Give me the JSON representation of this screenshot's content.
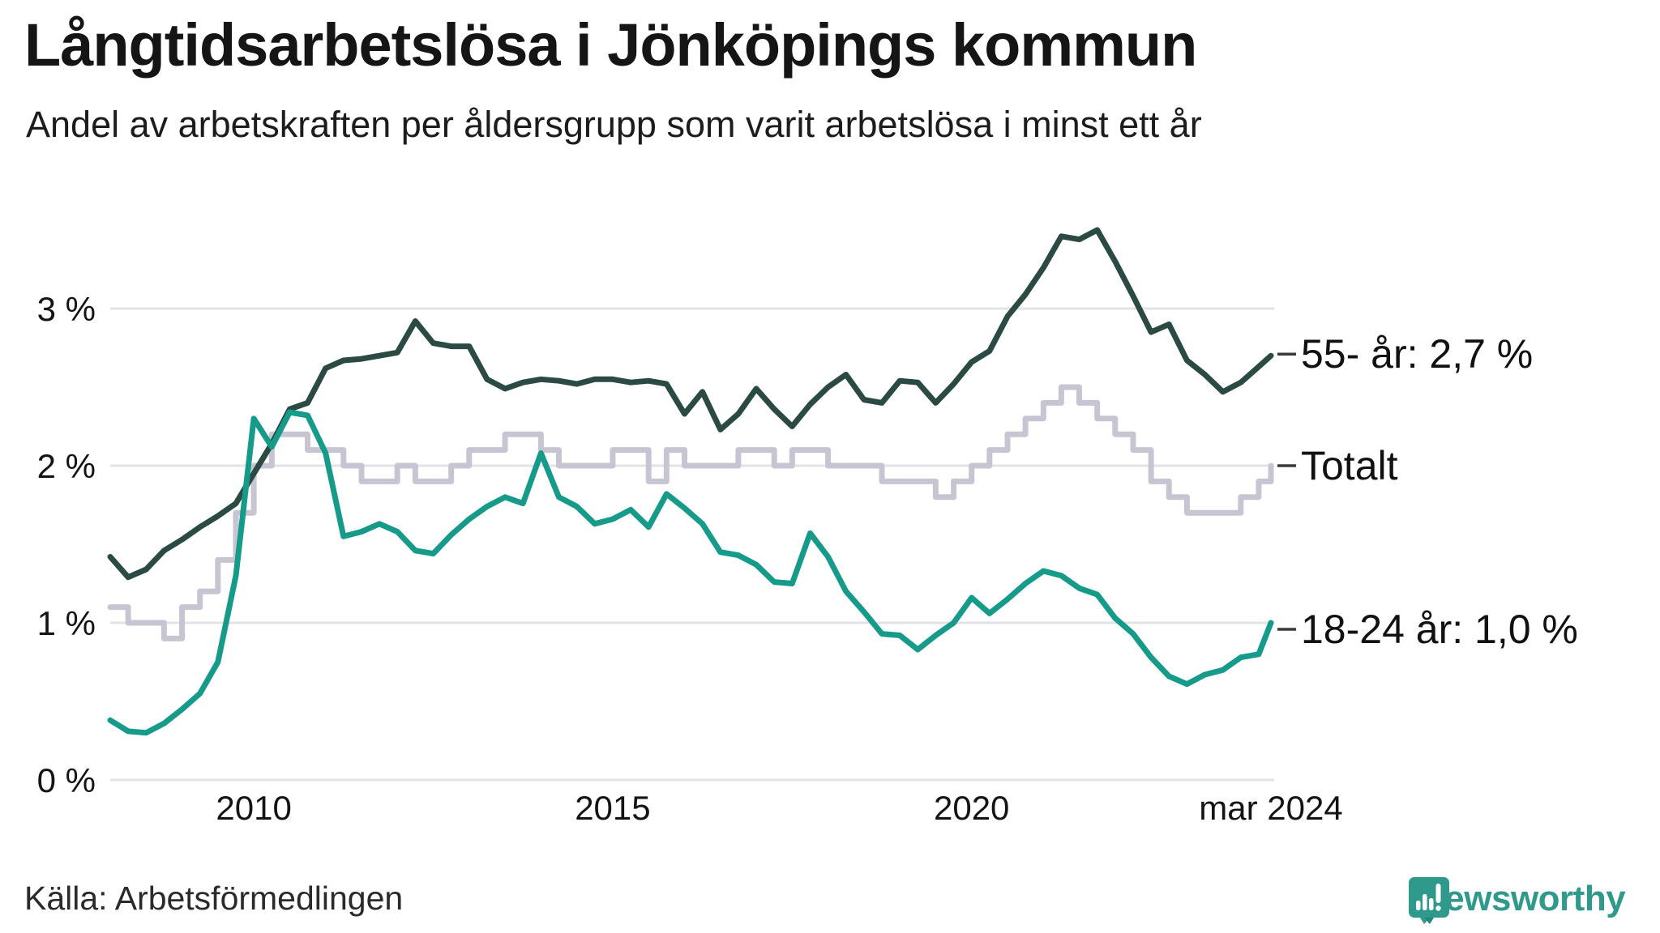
{
  "header": {
    "title": "Långtidsarbetslösa i Jönköpings kommun",
    "subtitle": "Andel av arbetskraften per åldersgrupp som varit arbetslösa i minst ett år"
  },
  "chart_data": {
    "type": "line",
    "title": "Långtidsarbetslösa i Jönköpings kommun",
    "xlabel": "",
    "ylabel": "",
    "grid": "horizontal-gridlines",
    "legend_position": "labels-at-line-ends-right",
    "xlim": [
      2008.0,
      2024.17
    ],
    "ylim": [
      0,
      3.6
    ],
    "y_ticks": [
      {
        "value": 3,
        "label": "3 %"
      },
      {
        "value": 2,
        "label": "2 %"
      },
      {
        "value": 1,
        "label": "1 %"
      },
      {
        "value": 0,
        "label": "0 %"
      }
    ],
    "x_ticks": [
      {
        "value": 2010,
        "label": "2010"
      },
      {
        "value": 2015,
        "label": "2015"
      },
      {
        "value": 2020,
        "label": "2020"
      },
      {
        "value": 2024.17,
        "label": "mar 2024"
      }
    ],
    "x": [
      2008,
      2008.25,
      2008.5,
      2008.75,
      2009,
      2009.25,
      2009.5,
      2009.75,
      2010,
      2010.25,
      2010.5,
      2010.75,
      2011,
      2011.25,
      2011.5,
      2011.75,
      2012,
      2012.25,
      2012.5,
      2012.75,
      2013,
      2013.25,
      2013.5,
      2013.75,
      2014,
      2014.25,
      2014.5,
      2014.75,
      2015,
      2015.25,
      2015.5,
      2015.75,
      2016,
      2016.25,
      2016.5,
      2016.75,
      2017,
      2017.25,
      2017.5,
      2017.75,
      2018,
      2018.25,
      2018.5,
      2018.75,
      2019,
      2019.25,
      2019.5,
      2019.75,
      2020,
      2020.25,
      2020.5,
      2020.75,
      2021,
      2021.25,
      2021.5,
      2021.75,
      2022,
      2022.25,
      2022.5,
      2022.75,
      2023,
      2023.25,
      2023.5,
      2023.75,
      2024,
      2024.17
    ],
    "series": [
      {
        "name": "Totalt",
        "end_label": "Totalt",
        "end_value": "2,0 %",
        "color": "#c8c5d3",
        "interpolation": "step-after",
        "label_dy": 0,
        "values": [
          1.1,
          1.0,
          1.0,
          0.9,
          1.1,
          1.2,
          1.4,
          1.7,
          2.0,
          2.2,
          2.2,
          2.1,
          2.1,
          2.0,
          1.9,
          1.9,
          2.0,
          1.9,
          1.9,
          2.0,
          2.1,
          2.1,
          2.2,
          2.2,
          2.1,
          2.0,
          2.0,
          2.0,
          2.1,
          2.1,
          1.9,
          2.1,
          2.0,
          2.0,
          2.0,
          2.1,
          2.1,
          2.0,
          2.1,
          2.1,
          2.0,
          2.0,
          2.0,
          1.9,
          1.9,
          1.9,
          1.8,
          1.9,
          2.0,
          2.1,
          2.2,
          2.3,
          2.4,
          2.5,
          2.4,
          2.3,
          2.2,
          2.1,
          1.9,
          1.8,
          1.7,
          1.7,
          1.7,
          1.8,
          1.9,
          2.0
        ]
      },
      {
        "name": "55- år",
        "end_label": "55- år: 2,7 %",
        "end_value": "2,7 %",
        "color": "#2b4a43",
        "interpolation": "linear",
        "label_dy": -2,
        "values": [
          1.42,
          1.29,
          1.34,
          1.46,
          1.53,
          1.61,
          1.68,
          1.76,
          1.95,
          2.14,
          2.36,
          2.4,
          2.62,
          2.67,
          2.68,
          2.7,
          2.72,
          2.92,
          2.78,
          2.76,
          2.76,
          2.55,
          2.49,
          2.53,
          2.55,
          2.54,
          2.52,
          2.55,
          2.55,
          2.53,
          2.54,
          2.52,
          2.33,
          2.47,
          2.23,
          2.33,
          2.49,
          2.36,
          2.25,
          2.39,
          2.5,
          2.58,
          2.42,
          2.4,
          2.54,
          2.53,
          2.4,
          2.52,
          2.66,
          2.73,
          2.95,
          3.09,
          3.26,
          3.46,
          3.44,
          3.5,
          3.3,
          3.08,
          2.85,
          2.9,
          2.67,
          2.58,
          2.47,
          2.53,
          2.63,
          2.7
        ]
      },
      {
        "name": "18-24 år",
        "end_label": "18-24 år: 1,0 %",
        "end_value": "1,0 %",
        "color": "#169b8a",
        "interpolation": "linear",
        "label_dy": 8,
        "values": [
          0.38,
          0.31,
          0.3,
          0.36,
          0.45,
          0.55,
          0.75,
          1.3,
          2.3,
          2.12,
          2.34,
          2.32,
          2.08,
          1.55,
          1.58,
          1.63,
          1.58,
          1.46,
          1.44,
          1.56,
          1.66,
          1.74,
          1.8,
          1.76,
          2.08,
          1.8,
          1.74,
          1.63,
          1.66,
          1.72,
          1.61,
          1.82,
          1.73,
          1.63,
          1.45,
          1.43,
          1.37,
          1.26,
          1.25,
          1.57,
          1.42,
          1.2,
          1.07,
          0.93,
          0.92,
          0.83,
          0.92,
          1.0,
          1.16,
          1.06,
          1.15,
          1.25,
          1.33,
          1.3,
          1.22,
          1.18,
          1.03,
          0.93,
          0.78,
          0.66,
          0.61,
          0.67,
          0.7,
          0.78,
          0.8,
          1.0
        ]
      }
    ]
  },
  "style": {
    "gridline_color": "#e3e3e7",
    "axis_text_color": "#141414",
    "label_text_color": "#111111",
    "tick_dash_color": "#3a3a3a",
    "brand_color": "#2f9a8b"
  },
  "footer": {
    "source": "Källa: Arbetsförmedlingen",
    "brand": "Newsworthy"
  }
}
